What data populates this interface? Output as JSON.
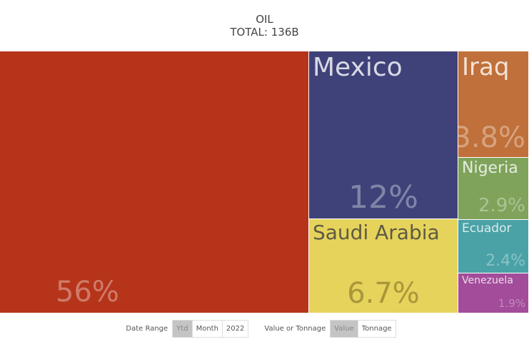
{
  "chart_data": {
    "type": "treemap",
    "title": "OIL",
    "subtitle": "TOTAL: 136B",
    "tiles": [
      {
        "name": "",
        "pct": "56%",
        "value": 56,
        "color": "#b5341a"
      },
      {
        "name": "Mexico",
        "pct": "12%",
        "value": 12,
        "color": "#3f4279"
      },
      {
        "name": "Saudi Arabia",
        "pct": "6.7%",
        "value": 6.7,
        "color": "#e6d35c"
      },
      {
        "name": "Iraq",
        "pct": "3.8%",
        "value": 3.8,
        "color": "#c0703a"
      },
      {
        "name": "Nigeria",
        "pct": "2.9%",
        "value": 2.9,
        "color": "#7fa35b"
      },
      {
        "name": "Ecuador",
        "pct": "2.4%",
        "value": 2.4,
        "color": "#4aa2a6"
      },
      {
        "name": "Venezuela",
        "pct": "1.9%",
        "value": 1.9,
        "color": "#a24c9a"
      }
    ]
  },
  "controls": {
    "date_label": "Date Range",
    "date_options": [
      "Ytd",
      "Month",
      "2022"
    ],
    "mode_label": "Value or Tonnage",
    "mode_options": [
      "Value",
      "Tonnage"
    ]
  }
}
